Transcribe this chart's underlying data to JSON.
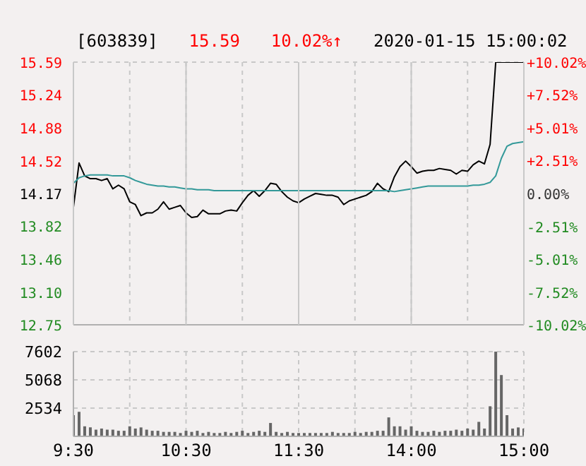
{
  "chart_data": [
    {
      "type": "line",
      "title": "[603839]",
      "annotations": [
        "15.59",
        "10.02%↑",
        "2020-01-15 15:00:02"
      ],
      "categories": [
        null,
        null,
        null,
        null,
        null,
        null,
        null,
        null,
        null,
        null,
        null,
        null,
        null,
        null,
        null,
        null,
        null,
        null,
        null,
        null,
        null,
        null,
        null,
        null,
        null,
        null,
        null,
        null,
        null,
        null,
        null,
        null,
        null,
        null,
        null,
        null,
        null,
        null,
        null,
        null,
        null,
        null,
        null,
        null,
        null,
        null,
        null,
        null,
        null,
        null,
        null,
        null,
        null,
        null,
        null,
        null,
        null,
        null,
        null,
        null,
        null,
        null,
        null,
        null,
        null,
        null,
        null,
        null,
        null,
        null,
        null,
        null,
        null,
        null,
        null,
        null,
        null,
        null,
        null,
        null,
        null
      ],
      "ylim": [
        12.75,
        15.59
      ],
      "yticks": [
        12.75,
        {
          "value": 13.1,
          "label": "13.10"
        },
        13.46,
        13.82,
        14.17,
        14.52,
        14.88,
        15.24,
        15.59
      ],
      "y2lim": [
        -10.02,
        10.02
      ],
      "y2ticks": [
        {
          "value": -10.02,
          "label": "-10.02%"
        },
        {
          "value": -7.52,
          "label": "-7.52%"
        },
        {
          "value": -5.01,
          "label": "-5.01%"
        },
        {
          "value": -2.51,
          "label": "-2.51%"
        },
        {
          "value": 0,
          "label": "0.00%"
        },
        {
          "value": 2.51,
          "label": "+2.51%"
        },
        {
          "value": 5.01,
          "label": "+5.01%"
        },
        {
          "value": 7.52,
          "label": "+7.52%"
        },
        {
          "value": 10.02,
          "label": "+10.02%"
        }
      ],
      "tick_labels": "y",
      "grid": true,
      "legend": false,
      "marker": "none",
      "line_style": "solid",
      "series": [
        {
          "color": "#000000",
          "values": [
            14.02,
            14.5,
            14.36,
            14.33,
            14.33,
            14.31,
            14.33,
            14.22,
            14.26,
            14.22,
            14.08,
            14.05,
            13.93,
            13.96,
            13.96,
            14.0,
            14.08,
            14.0,
            14.02,
            14.04,
            13.96,
            13.91,
            13.92,
            13.99,
            13.95,
            13.95,
            13.95,
            13.98,
            13.99,
            13.98,
            14.07,
            14.15,
            14.2,
            14.14,
            14.2,
            14.28,
            14.27,
            14.19,
            14.13,
            14.09,
            14.07,
            14.11,
            14.14,
            14.17,
            14.16,
            14.15,
            14.15,
            14.13,
            14.05,
            14.09,
            14.11,
            14.13,
            14.15,
            14.19,
            14.28,
            14.22,
            14.19,
            14.35,
            14.46,
            14.52,
            14.46,
            14.39,
            14.41,
            14.42,
            14.42,
            14.44,
            14.43,
            14.42,
            14.38,
            14.42,
            14.41,
            14.48,
            14.52,
            14.49,
            14.7,
            15.59,
            15.59,
            15.59,
            15.59,
            15.59,
            15.59
          ]
        },
        {
          "color": "#339999",
          "values": [
            14.28,
            14.34,
            14.36,
            14.37,
            14.37,
            14.37,
            14.37,
            14.36,
            14.36,
            14.36,
            14.34,
            14.31,
            14.29,
            14.27,
            14.26,
            14.25,
            14.25,
            14.24,
            14.24,
            14.23,
            14.22,
            14.22,
            14.21,
            14.21,
            14.21,
            14.2,
            14.2,
            14.2,
            14.2,
            14.2,
            14.2,
            14.2,
            14.2,
            14.2,
            14.2,
            14.2,
            14.2,
            14.2,
            14.2,
            14.2,
            14.2,
            14.2,
            14.2,
            14.2,
            14.2,
            14.2,
            14.2,
            14.2,
            14.2,
            14.2,
            14.2,
            14.2,
            14.2,
            14.2,
            14.2,
            14.2,
            14.2,
            14.19,
            14.2,
            14.21,
            14.22,
            14.23,
            14.24,
            14.25,
            14.25,
            14.25,
            14.25,
            14.25,
            14.25,
            14.25,
            14.25,
            14.26,
            14.26,
            14.27,
            14.29,
            14.36,
            14.55,
            14.68,
            14.71,
            14.72,
            14.73
          ]
        }
      ]
    },
    {
      "type": "bar",
      "categories": [
        "9:30",
        null,
        null,
        null,
        null,
        null,
        null,
        null,
        null,
        null,
        null,
        null,
        null,
        null,
        null,
        null,
        null,
        null,
        null,
        null,
        "10:30",
        null,
        null,
        null,
        null,
        null,
        null,
        null,
        null,
        null,
        null,
        null,
        null,
        null,
        null,
        null,
        null,
        null,
        null,
        null,
        "11:30",
        null,
        null,
        null,
        null,
        null,
        null,
        null,
        null,
        null,
        null,
        null,
        null,
        null,
        null,
        null,
        null,
        null,
        null,
        null,
        "14:00",
        null,
        null,
        null,
        null,
        null,
        null,
        null,
        null,
        null,
        null,
        null,
        null,
        null,
        null,
        null,
        null,
        null,
        null,
        null,
        "15:00"
      ],
      "ylim": [
        0,
        7602
      ],
      "yticks": [
        2534,
        5068,
        7602
      ],
      "grid": true,
      "legend": false,
      "series": [
        {
          "color": "#666666",
          "values": [
            1900,
            2200,
            900,
            800,
            600,
            700,
            600,
            600,
            500,
            500,
            900,
            700,
            800,
            600,
            500,
            500,
            400,
            400,
            400,
            300,
            500,
            400,
            500,
            300,
            400,
            300,
            300,
            400,
            300,
            400,
            500,
            300,
            400,
            500,
            400,
            1200,
            400,
            300,
            400,
            300,
            300,
            300,
            300,
            300,
            300,
            300,
            400,
            300,
            300,
            300,
            400,
            300,
            400,
            400,
            500,
            500,
            1700,
            900,
            900,
            600,
            900,
            500,
            400,
            400,
            500,
            400,
            500,
            500,
            600,
            500,
            700,
            600,
            1300,
            700,
            2700,
            7600,
            5500,
            1900,
            700,
            800,
            700
          ]
        }
      ]
    }
  ]
}
